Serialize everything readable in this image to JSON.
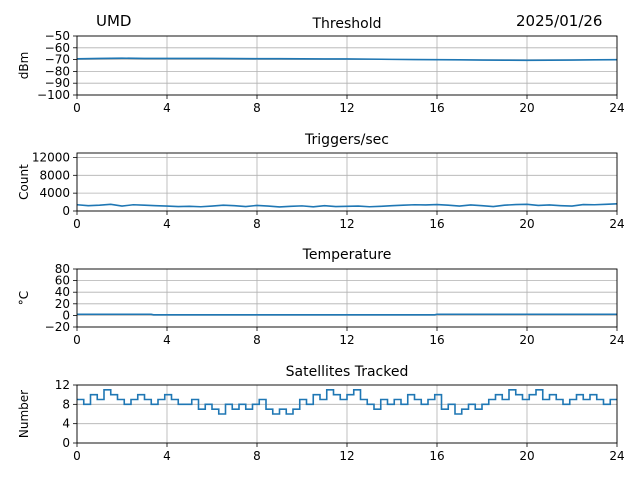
{
  "header": {
    "site": "UMD",
    "date": "2025/01/26"
  },
  "series_color": "#1f77b4",
  "chart_data": [
    {
      "id": "threshold",
      "type": "line",
      "title": "Threshold",
      "ylabel": "dBm",
      "xlim": [
        0,
        24
      ],
      "xticks": [
        0,
        4,
        8,
        12,
        16,
        20,
        24
      ],
      "ylim": [
        -100,
        -50
      ],
      "yticks": [
        -100,
        -90,
        -80,
        -70,
        -60,
        -50
      ],
      "grid": true,
      "x": [
        0,
        1,
        2,
        3,
        4,
        5,
        6,
        7,
        8,
        9,
        10,
        11,
        12,
        13,
        14,
        15,
        16,
        17,
        18,
        19,
        20,
        21,
        22,
        23,
        24
      ],
      "values": [
        -69.3,
        -69,
        -68.8,
        -69,
        -69,
        -69,
        -69,
        -69.1,
        -69.2,
        -69.2,
        -69.3,
        -69.4,
        -69.4,
        -69.6,
        -69.8,
        -70,
        -70.1,
        -70.2,
        -70.4,
        -70.5,
        -70.6,
        -70.5,
        -70.4,
        -70.2,
        -70.1
      ]
    },
    {
      "id": "triggers",
      "type": "line",
      "title": "Triggers/sec",
      "ylabel": "Count",
      "xlim": [
        0,
        24
      ],
      "xticks": [
        0,
        4,
        8,
        12,
        16,
        20,
        24
      ],
      "ylim": [
        0,
        13000
      ],
      "yticks": [
        0,
        4000,
        8000,
        12000
      ],
      "grid": true,
      "x": [
        0,
        0.5,
        1,
        1.5,
        2,
        2.5,
        3,
        3.5,
        4,
        4.5,
        5,
        5.5,
        6,
        6.5,
        7,
        7.5,
        8,
        8.5,
        9,
        9.5,
        10,
        10.5,
        11,
        11.5,
        12,
        12.5,
        13,
        13.5,
        14,
        14.5,
        15,
        15.5,
        16,
        16.5,
        17,
        17.5,
        18,
        18.5,
        19,
        19.5,
        20,
        20.5,
        21,
        21.5,
        22,
        22.5,
        23,
        23.5,
        24
      ],
      "values": [
        1400,
        1200,
        1300,
        1500,
        1100,
        1400,
        1300,
        1200,
        1100,
        1000,
        1050,
        950,
        1100,
        1300,
        1200,
        1000,
        1250,
        1100,
        900,
        1050,
        1150,
        950,
        1200,
        1000,
        1050,
        1100,
        950,
        1050,
        1200,
        1300,
        1400,
        1350,
        1450,
        1300,
        1100,
        1350,
        1200,
        1000,
        1300,
        1450,
        1500,
        1250,
        1350,
        1200,
        1100,
        1450,
        1400,
        1500,
        1600
      ]
    },
    {
      "id": "temperature",
      "type": "line",
      "title": "Temperature",
      "ylabel": "°C",
      "xlim": [
        0,
        24
      ],
      "xticks": [
        0,
        4,
        8,
        12,
        16,
        20,
        24
      ],
      "ylim": [
        -20,
        80
      ],
      "yticks": [
        -20,
        0,
        20,
        40,
        60,
        80
      ],
      "grid": true,
      "x": [
        0,
        2,
        3.3,
        3.4,
        6,
        8,
        10,
        12,
        14,
        15.9,
        16,
        18,
        20,
        22,
        24
      ],
      "values": [
        2,
        2,
        2,
        1,
        1,
        1,
        1,
        1,
        1,
        1,
        2,
        2,
        2,
        2,
        2
      ]
    },
    {
      "id": "satellites",
      "type": "line",
      "title": "Satellites Tracked",
      "ylabel": "Number",
      "xlim": [
        0,
        24
      ],
      "xticks": [
        0,
        4,
        8,
        12,
        16,
        20,
        24
      ],
      "ylim": [
        0,
        12
      ],
      "yticks": [
        0,
        4,
        8,
        12
      ],
      "grid": true,
      "step": true,
      "x": [
        0,
        0.3,
        0.6,
        0.9,
        1.2,
        1.5,
        1.8,
        2.1,
        2.4,
        2.7,
        3.0,
        3.3,
        3.6,
        3.9,
        4.2,
        4.5,
        4.8,
        5.1,
        5.4,
        5.7,
        6.0,
        6.3,
        6.6,
        6.9,
        7.2,
        7.5,
        7.8,
        8.1,
        8.4,
        8.7,
        9.0,
        9.3,
        9.6,
        9.9,
        10.2,
        10.5,
        10.8,
        11.1,
        11.4,
        11.7,
        12.0,
        12.3,
        12.6,
        12.9,
        13.2,
        13.5,
        13.8,
        14.1,
        14.4,
        14.7,
        15.0,
        15.3,
        15.6,
        15.9,
        16.2,
        16.5,
        16.8,
        17.1,
        17.4,
        17.7,
        18.0,
        18.3,
        18.6,
        18.9,
        19.2,
        19.5,
        19.8,
        20.1,
        20.4,
        20.7,
        21.0,
        21.3,
        21.6,
        21.9,
        22.2,
        22.5,
        22.8,
        23.1,
        23.4,
        23.7,
        24.0
      ],
      "values": [
        9,
        8,
        10,
        9,
        11,
        10,
        9,
        8,
        9,
        10,
        9,
        8,
        9,
        10,
        9,
        8,
        8,
        9,
        7,
        8,
        7,
        6,
        8,
        7,
        8,
        7,
        8,
        9,
        7,
        6,
        7,
        6,
        7,
        9,
        8,
        10,
        9,
        11,
        10,
        9,
        10,
        11,
        9,
        8,
        7,
        9,
        8,
        9,
        8,
        10,
        9,
        8,
        9,
        10,
        7,
        8,
        6,
        7,
        8,
        7,
        8,
        9,
        10,
        9,
        11,
        10,
        9,
        10,
        11,
        9,
        10,
        9,
        8,
        9,
        10,
        9,
        10,
        9,
        8,
        9,
        9
      ]
    }
  ]
}
